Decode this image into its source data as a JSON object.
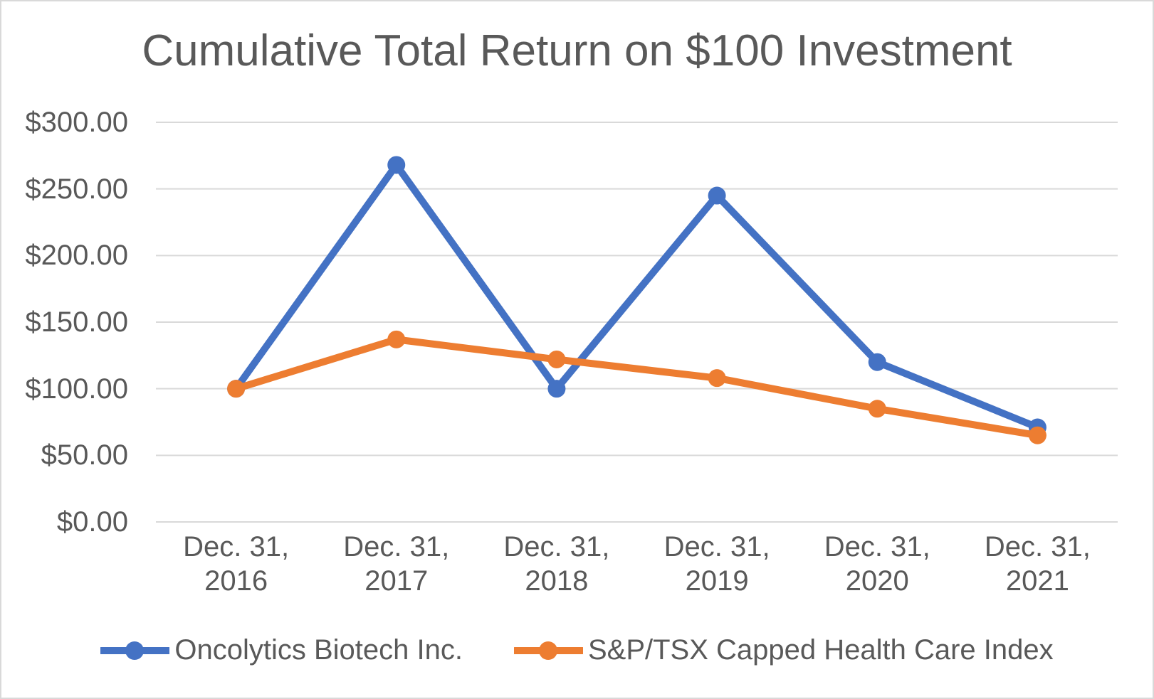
{
  "chart_data": {
    "type": "line",
    "title": "Cumulative Total Return on $100 Investment",
    "xlabel": "",
    "ylabel": "",
    "ylim": [
      0,
      300
    ],
    "grid": true,
    "legend_position": "bottom",
    "y_ticks": [
      "$300.00",
      "$250.00",
      "$200.00",
      "$150.00",
      "$100.00",
      "$50.00",
      "$0.00"
    ],
    "y_tick_values": [
      300,
      250,
      200,
      150,
      100,
      50,
      0
    ],
    "x_labels": [
      {
        "line1": "Dec. 31,",
        "line2": "2016"
      },
      {
        "line1": "Dec. 31,",
        "line2": "2017"
      },
      {
        "line1": "Dec. 31,",
        "line2": "2018"
      },
      {
        "line1": "Dec. 31,",
        "line2": "2019"
      },
      {
        "line1": "Dec. 31,",
        "line2": "2020"
      },
      {
        "line1": "Dec. 31,",
        "line2": "2021"
      }
    ],
    "series": [
      {
        "name": "Oncolytics Biotech Inc.",
        "color": "#4472C4",
        "marker": "circle",
        "values": [
          100,
          268,
          100,
          245,
          120,
          71
        ]
      },
      {
        "name": "S&P/TSX Capped Health Care Index",
        "color": "#ED7D31",
        "marker": "circle",
        "values": [
          100,
          137,
          122,
          108,
          85,
          65
        ]
      }
    ],
    "colors": {
      "gridline": "#D9D9D9",
      "text": "#595959",
      "background": "#FFFFFF",
      "border": "#D9D9D9"
    }
  }
}
